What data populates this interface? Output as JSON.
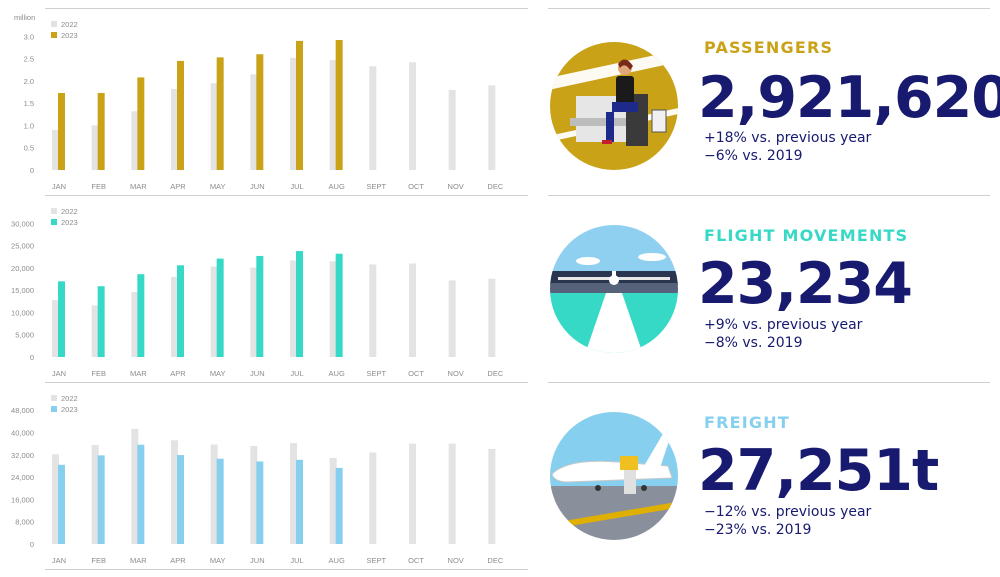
{
  "colors": {
    "bar2022": "#e3e3e3",
    "passengers": "#c9a218",
    "flights": "#36d9c6",
    "freight": "#86cfef",
    "navy": "#171a6e",
    "axis_text": "#8c8c8c"
  },
  "chart_data": [
    {
      "type": "bar",
      "name": "passengers",
      "unit_label": "million",
      "categories": [
        "JAN",
        "FEB",
        "MAR",
        "APR",
        "MAY",
        "JUN",
        "JUL",
        "AUG",
        "SEPT",
        "OCT",
        "NOV",
        "DEC"
      ],
      "yticks": [
        "0",
        "0.5",
        "1.0",
        "1.5",
        "2.0",
        "2.5",
        "3.0"
      ],
      "ymax": 3.1,
      "legend_position": "top-left",
      "series": [
        {
          "name": "2022",
          "values": [
            0.9,
            1.0,
            1.32,
            1.82,
            1.95,
            2.15,
            2.52,
            2.47,
            2.33,
            2.42,
            1.8,
            1.9
          ]
        },
        {
          "name": "2023",
          "values": [
            1.73,
            1.73,
            2.08,
            2.45,
            2.53,
            2.6,
            2.9,
            2.92,
            null,
            null,
            null,
            null
          ]
        }
      ]
    },
    {
      "type": "bar",
      "name": "flight movements",
      "unit_label": "",
      "categories": [
        "JAN",
        "FEB",
        "MAR",
        "APR",
        "MAY",
        "JUN",
        "JUL",
        "AUG",
        "SEPT",
        "OCT",
        "NOV",
        "DEC"
      ],
      "yticks": [
        "0",
        "5,000",
        "10,000",
        "15,000",
        "20,000",
        "25,000",
        "30,000"
      ],
      "ymax": 31000,
      "legend_position": "top-left",
      "series": [
        {
          "name": "2022",
          "values": [
            12800,
            11600,
            14600,
            18000,
            20300,
            20100,
            21700,
            21500,
            20800,
            21000,
            17200,
            17600
          ]
        },
        {
          "name": "2023",
          "values": [
            17000,
            15900,
            18600,
            20600,
            22100,
            22700,
            23800,
            23200,
            null,
            null,
            null,
            null
          ]
        }
      ]
    },
    {
      "type": "bar",
      "name": "freight",
      "unit_label": "",
      "categories": [
        "JAN",
        "FEB",
        "MAR",
        "APR",
        "MAY",
        "JUN",
        "JUL",
        "AUG",
        "SEPT",
        "OCT",
        "NOV",
        "DEC"
      ],
      "yticks": [
        "0",
        "8,000",
        "16,000",
        "24,000",
        "32,000",
        "40,000",
        "48,000"
      ],
      "ymax": 49500,
      "legend_position": "top-left",
      "series": [
        {
          "name": "2022",
          "values": [
            32200,
            35500,
            41300,
            37200,
            35700,
            35200,
            36200,
            30900,
            32800,
            36000,
            36000,
            34100
          ]
        },
        {
          "name": "2023",
          "values": [
            28400,
            31800,
            35600,
            31900,
            30600,
            29600,
            30200,
            27300,
            null,
            null,
            null,
            null
          ]
        }
      ]
    }
  ],
  "kpis": [
    {
      "title": "PASSENGERS",
      "value": "2,921,620",
      "line1": "+18% vs. previous year",
      "line2": "−6% vs. 2019"
    },
    {
      "title": "FLIGHT MOVEMENTS",
      "value": "23,234",
      "line1": "+9% vs. previous year",
      "line2": "−8% vs. 2019"
    },
    {
      "title": "FREIGHT",
      "value": "27,251t",
      "line1": "−12% vs. previous year",
      "line2": "−23% vs. 2019"
    }
  ]
}
